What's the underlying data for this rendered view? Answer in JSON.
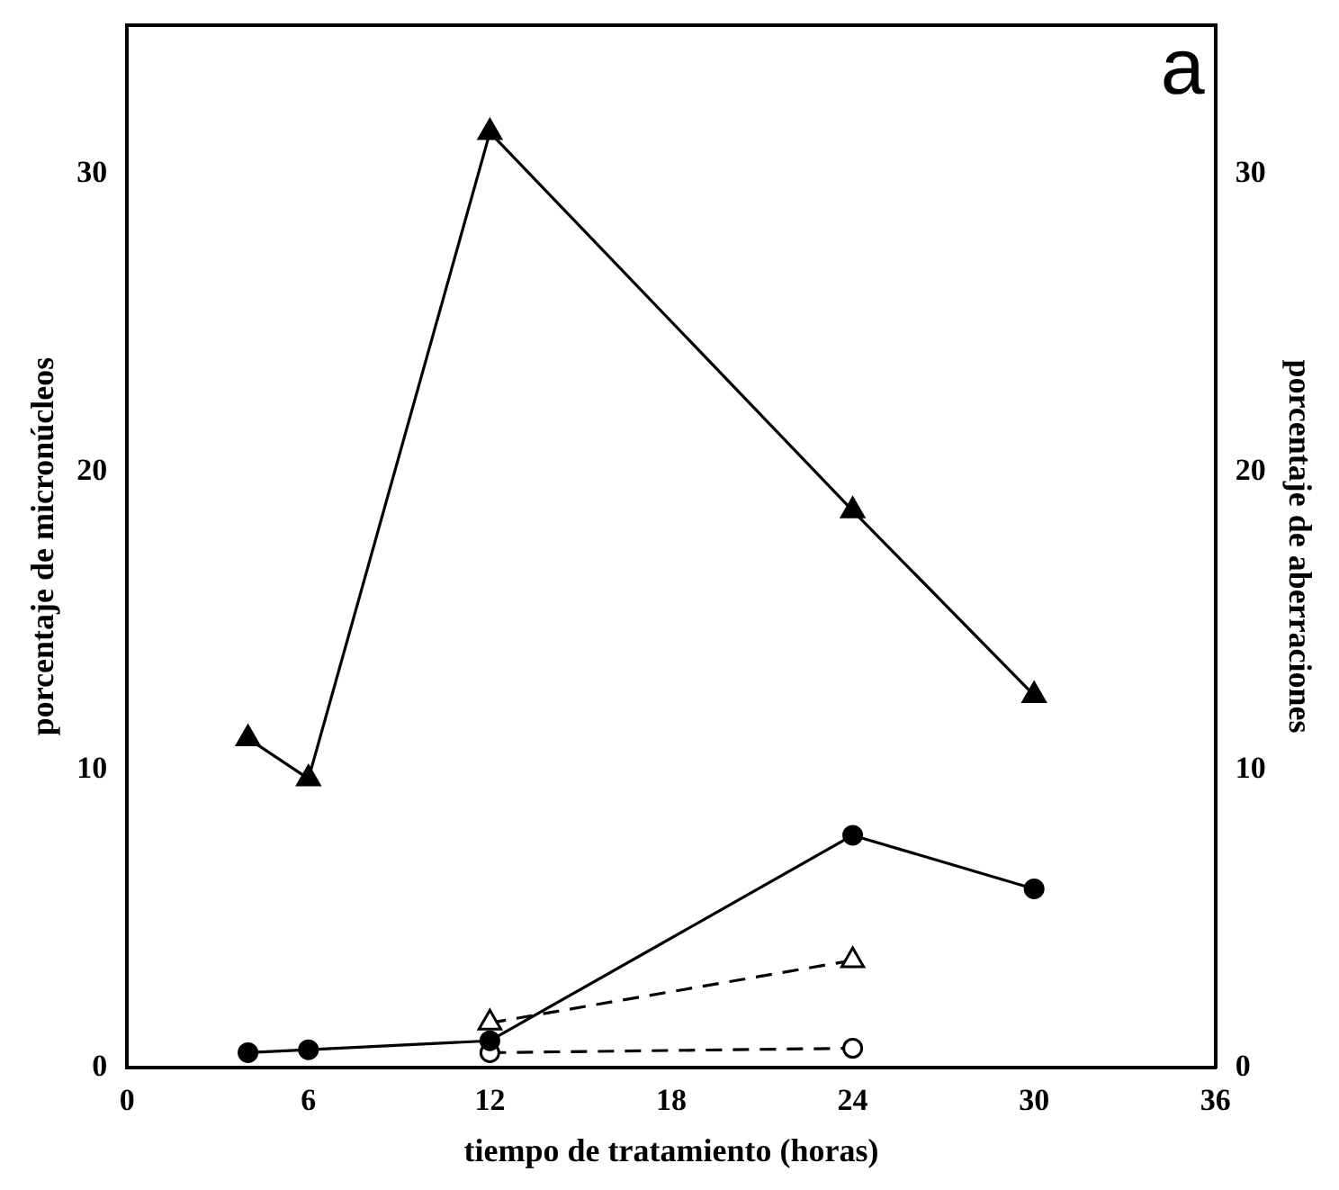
{
  "chart_data": {
    "type": "line",
    "xlabel": "tiempo de tratamiento (horas)",
    "ylabel": "porcentaje de micronúcleos",
    "y2label": "porcentaje de aberraciones",
    "annotations": [
      "a"
    ],
    "xlim": [
      0,
      36
    ],
    "xticks": [
      0,
      6,
      12,
      18,
      24,
      30,
      36
    ],
    "ylim": [
      0,
      35
    ],
    "yticks": [
      0,
      10,
      20,
      30
    ],
    "y2lim": [
      0,
      35
    ],
    "y2ticks": [
      0,
      10,
      20,
      30
    ],
    "grid": false,
    "legend": false,
    "series": [
      {
        "color": "#000000",
        "x": [
          4,
          6,
          12,
          24,
          30
        ],
        "values": [
          11.05,
          9.7,
          31.4,
          18.7,
          12.5
        ],
        "marker": "triangle",
        "line_style": "solid"
      },
      {
        "color": "#000000",
        "x": [
          4,
          6,
          12,
          24,
          30
        ],
        "values": [
          0.5,
          0.6,
          0.9,
          7.8,
          6.0
        ],
        "marker": "circle",
        "line_style": "solid"
      },
      {
        "color": "#000000",
        "x": [
          12,
          24
        ],
        "values": [
          1.5,
          3.6
        ],
        "marker": "triangle",
        "line_style": "dashed"
      },
      {
        "color": "#000000",
        "x": [
          12,
          24
        ],
        "values": [
          0.5,
          0.65
        ],
        "marker": "circle",
        "line_style": "dashed"
      }
    ]
  }
}
